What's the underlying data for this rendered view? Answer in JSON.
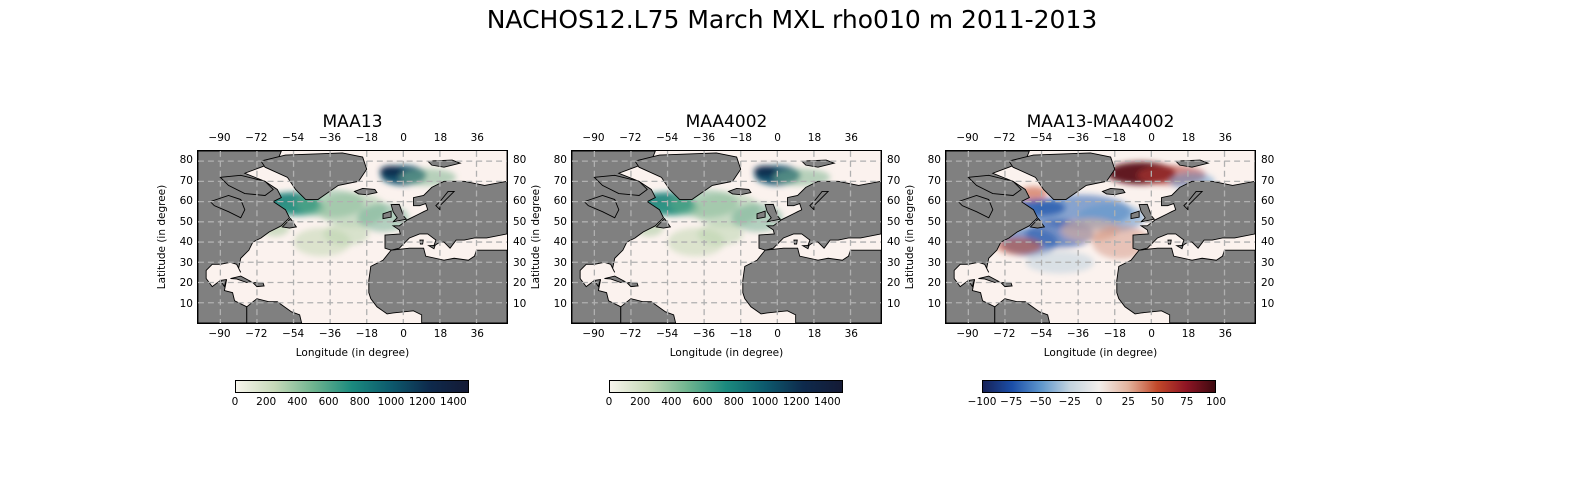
{
  "figure": {
    "suptitle": "NACHOS12.L75 March MXL rho010 m 2011-2013"
  },
  "panels": [
    {
      "id": "maa13",
      "title": "MAA13",
      "xlabel": "Longitude (in degree)",
      "ylabel": "Latitude (in degree)",
      "lon_ticks": [
        "−90",
        "−72",
        "−54",
        "−36",
        "−18",
        "0",
        "18",
        "36"
      ],
      "lat_ticks": [
        "80",
        "70",
        "60",
        "50",
        "40",
        "30",
        "20",
        "10"
      ],
      "colorbar_ticks": [
        "0",
        "200",
        "400",
        "600",
        "800",
        "1000",
        "1200",
        "1400"
      ],
      "colorbar_range": [
        0,
        1500
      ],
      "colormap": [
        "#f7f5ec",
        "#c6d9b8",
        "#6fb48f",
        "#1b8a7e",
        "#0d5a6d",
        "#0e2a4c",
        "#141a35"
      ],
      "style": "sequential"
    },
    {
      "id": "maa4002",
      "title": "MAA4002",
      "xlabel": "Longitude (in degree)",
      "ylabel": "Latitude (in degree)",
      "lon_ticks": [
        "−90",
        "−72",
        "−54",
        "−36",
        "−18",
        "0",
        "18",
        "36"
      ],
      "lat_ticks": [
        "80",
        "70",
        "60",
        "50",
        "40",
        "30",
        "20",
        "10"
      ],
      "colorbar_ticks": [
        "0",
        "200",
        "400",
        "600",
        "800",
        "1000",
        "1200",
        "1400"
      ],
      "colorbar_range": [
        0,
        1500
      ],
      "colormap": [
        "#f7f5ec",
        "#c6d9b8",
        "#6fb48f",
        "#1b8a7e",
        "#0d5a6d",
        "#0e2a4c",
        "#141a35"
      ],
      "style": "sequential"
    },
    {
      "id": "diff",
      "title": "MAA13-MAA4002",
      "xlabel": "Longitude (in degree)",
      "ylabel": "Latitude (in degree)",
      "lon_ticks": [
        "−90",
        "−72",
        "−54",
        "−36",
        "−18",
        "0",
        "18",
        "36"
      ],
      "lat_ticks": [
        "80",
        "70",
        "60",
        "50",
        "40",
        "30",
        "20",
        "10"
      ],
      "colorbar_ticks": [
        "−100",
        "−75",
        "−50",
        "−25",
        "0",
        "25",
        "50",
        "75",
        "100"
      ],
      "colorbar_range": [
        -100,
        100
      ],
      "colormap": [
        "#172257",
        "#1b4ea8",
        "#5e96cc",
        "#c3d3df",
        "#f2eeeb",
        "#e2b39d",
        "#c2492a",
        "#8f1524",
        "#3d0a10"
      ],
      "style": "diverging"
    }
  ],
  "colors": {
    "land": "#808080",
    "ocean_background": "#fbf2ee",
    "grid": "#b0b0b0"
  }
}
